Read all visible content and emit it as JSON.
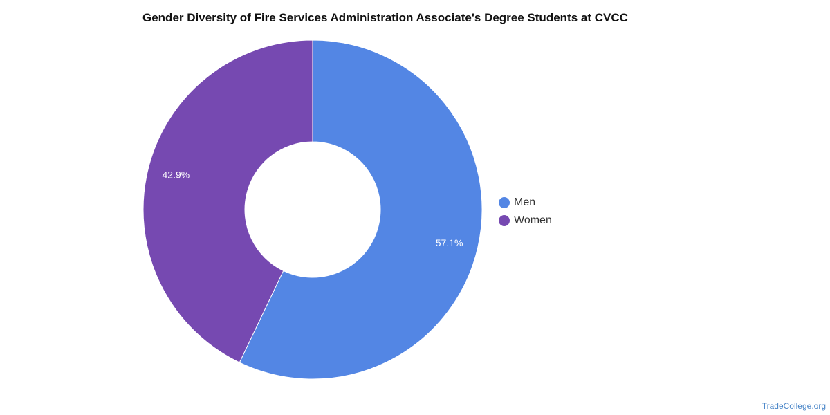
{
  "chart_data": {
    "type": "pie",
    "donut": true,
    "title": "Gender Diversity of Fire Services Administration Associate's Degree Students at CVCC",
    "categories": [
      "Men",
      "Women"
    ],
    "values": [
      57.1,
      42.9
    ],
    "labels": [
      "57.1%",
      "42.9%"
    ],
    "colors": [
      "#5386e4",
      "#7649b1"
    ],
    "legend_position": "right"
  },
  "legend": {
    "items": [
      {
        "label": "Men",
        "color": "#5386e4"
      },
      {
        "label": "Women",
        "color": "#7649b1"
      }
    ]
  },
  "credit": "TradeCollege.org"
}
